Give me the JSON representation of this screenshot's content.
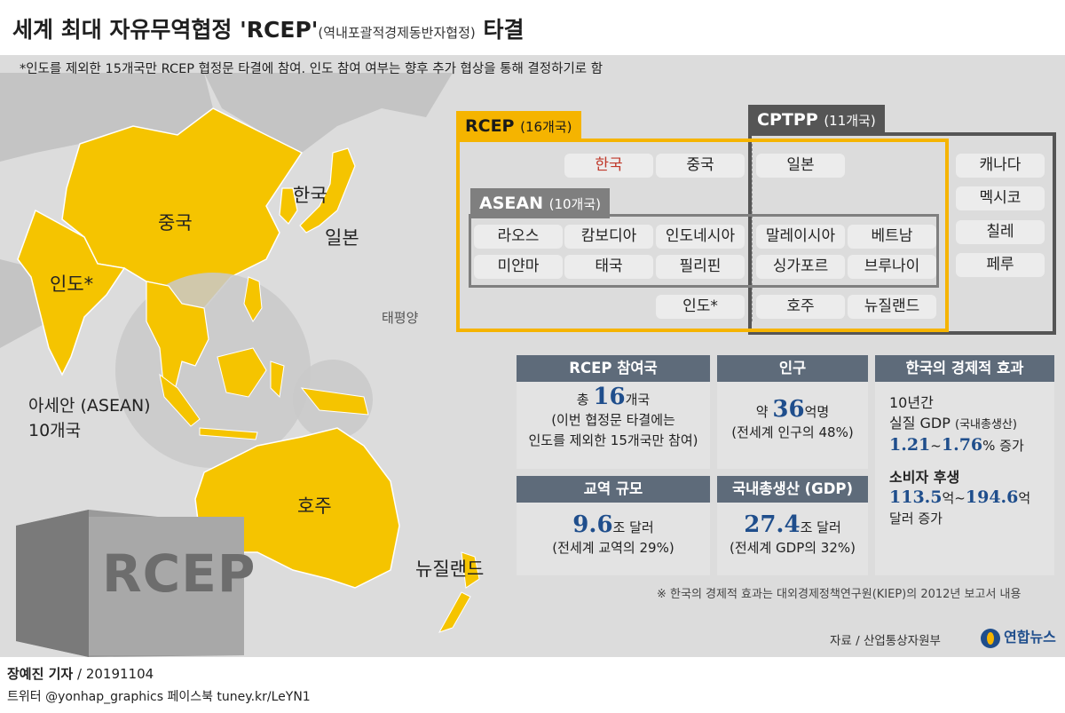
{
  "header": {
    "title_main": "세계 최대 자유무역협정 'RCEP'",
    "title_sub": "(역내포괄적경제동반자협정)",
    "title_tail": "타결"
  },
  "note_top": "*인도를 제외한 15개국만 RCEP 협정문 타결에 참여. 인도 참여 여부는 향후 추가 협상을 통해 결정하기로 함",
  "map_labels": {
    "china": "중국",
    "korea": "한국",
    "japan": "일본",
    "india": "인도*",
    "asean": "아세안 (ASEAN)",
    "asean_count": "10개국",
    "australia": "호주",
    "newzealand": "뉴질랜드",
    "pacific": "태평양"
  },
  "colors": {
    "member": "#f5c400",
    "land": "#bdbdbd",
    "rcep": "#f5b400",
    "cptpp": "#555555",
    "asean": "#7f7f7f",
    "stat_header": "#5e6b7a",
    "value": "#1f4e8c"
  },
  "groups": {
    "rcep": {
      "name": "RCEP",
      "count": "(16개국)"
    },
    "cptpp": {
      "name": "CPTPP",
      "count": "(11개국)"
    },
    "asean": {
      "name": "ASEAN",
      "count": "(10개국)"
    }
  },
  "countries": {
    "korea": "한국",
    "china": "중국",
    "japan": "일본",
    "laos": "라오스",
    "cambodia": "캄보디아",
    "indonesia": "인도네시아",
    "malaysia": "말레이시아",
    "vietnam": "베트남",
    "myanmar": "미얀마",
    "thailand": "태국",
    "philippines": "필리핀",
    "singapore": "싱가포르",
    "brunei": "브루나이",
    "india": "인도*",
    "australia": "호주",
    "newzealand": "뉴질랜드",
    "canada": "캐나다",
    "mexico": "멕시코",
    "chile": "칠레",
    "peru": "페루"
  },
  "stats": {
    "members": {
      "header": "RCEP 참여국",
      "pre": "총",
      "value": "16",
      "unit": "개국",
      "line2": "(이번 협정문 타결에는",
      "line3": "인도를 제외한 15개국만 참여)"
    },
    "population": {
      "header": "인구",
      "pre": "약",
      "value": "36",
      "unit": "억명",
      "line2": "(전세계 인구의 48%)"
    },
    "trade": {
      "header": "교역 규모",
      "value": "9.6",
      "unit": "조 달러",
      "line2": "(전세계 교역의 29%)"
    },
    "gdp": {
      "header": "국내총생산 (GDP)",
      "value": "27.4",
      "unit": "조 달러",
      "line2": "(전세계 GDP의 32%)"
    },
    "korea_effect": {
      "header": "한국의 경제적 효과",
      "gdp_label1": "10년간",
      "gdp_label2": "실질 GDP",
      "gdp_label3": "(국내총생산)",
      "gdp_low": "1.21",
      "gdp_sep": "~",
      "gdp_high": "1.76",
      "gdp_unit": "% 증가",
      "cons_label": "소비자 후생",
      "cons_low": "113.5",
      "cons_mid": "억~",
      "cons_high": "194.6",
      "cons_unit": "억",
      "cons_unit2": "달러 증가"
    }
  },
  "source_note": "※ 한국의 경제적 효과는 대외경제정책연구원(KIEP)의 2012년 보고서 내용",
  "source": "자료 / 산업통상자원부",
  "logo_text": "연합뉴스",
  "container_text": "RCEP",
  "footer": {
    "reporter": "장예진 기자",
    "date": " / 20191104",
    "social": "트위터 @yonhap_graphics  페이스북 tuney.kr/LeYN1"
  }
}
